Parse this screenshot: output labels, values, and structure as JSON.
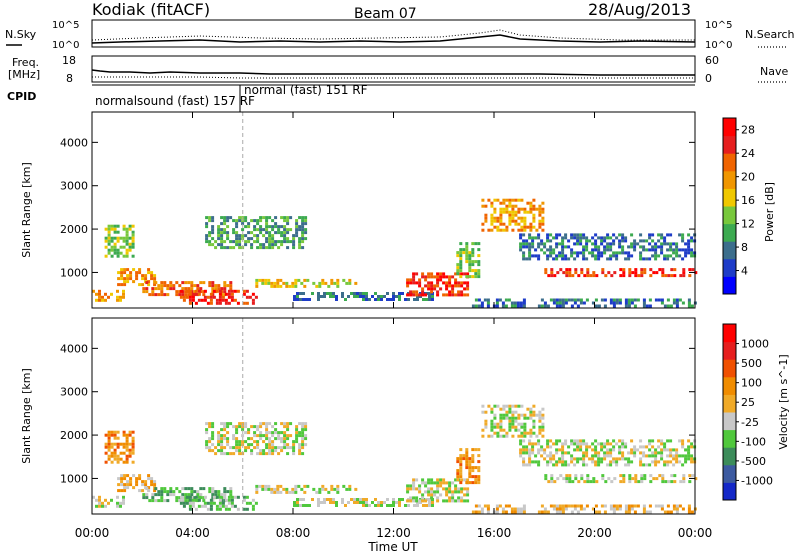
{
  "header": {
    "station": "Kodiak (fitACF)",
    "beam": "Beam 07",
    "date": "28/Aug/2013"
  },
  "aux_panels": {
    "nsky_label": "N.Sky",
    "nsearch_label": "N.Search",
    "freq_label_1": "Freq.",
    "freq_label_2": "[MHz]",
    "nave_label": "Nave",
    "cpid_label": "CPID",
    "noise_ticks": [
      "10^5",
      "10^0"
    ],
    "freq_ticks": [
      "18",
      "8"
    ],
    "nave_ticks": [
      "60",
      "0"
    ],
    "cpid_1": "normalsound (fast) 157 RF",
    "cpid_2": "normal (fast) 151 RF"
  },
  "chart_data": [
    {
      "type": "heatmap",
      "name": "power",
      "xlabel": "Time UT",
      "ylabel": "Slant Range [km]",
      "x_ticks": [
        "00:00",
        "04:00",
        "08:00",
        "12:00",
        "16:00",
        "20:00",
        "00:00"
      ],
      "xlim_hours": [
        0,
        24
      ],
      "y_ticks": [
        1000,
        2000,
        3000,
        4000
      ],
      "ylim": [
        180,
        4700
      ],
      "colorbar_label": "Power [dB]",
      "colorbar_ticks": [
        "4",
        "8",
        "12",
        "16",
        "20",
        "24",
        "28"
      ],
      "colorbar_range": [
        0,
        30
      ],
      "colors": [
        "#0000ff",
        "#1e3cc8",
        "#3c6e8c",
        "#3caa50",
        "#78c83c",
        "#f0c800",
        "#f09600",
        "#f06400",
        "#e61e1e",
        "#ff0000"
      ],
      "regions": [
        {
          "t": [
            0.0,
            1.2
          ],
          "r": [
            350,
            600
          ],
          "v": 20
        },
        {
          "t": [
            0.5,
            1.6
          ],
          "r": [
            1400,
            2100
          ],
          "v": 12
        },
        {
          "t": [
            1.0,
            2.5
          ],
          "r": [
            700,
            1100
          ],
          "v": 18
        },
        {
          "t": [
            2.0,
            5.5
          ],
          "r": [
            500,
            800
          ],
          "v": 22
        },
        {
          "t": [
            3.5,
            6.5
          ],
          "r": [
            300,
            600
          ],
          "v": 26
        },
        {
          "t": [
            4.5,
            8.5
          ],
          "r": [
            1600,
            2300
          ],
          "v": 10
        },
        {
          "t": [
            6.5,
            10.5
          ],
          "r": [
            650,
            850
          ],
          "v": 16
        },
        {
          "t": [
            8.0,
            13.5
          ],
          "r": [
            350,
            550
          ],
          "v": 8
        },
        {
          "t": [
            12.5,
            15.0
          ],
          "r": [
            500,
            1000
          ],
          "v": 24
        },
        {
          "t": [
            14.5,
            15.4
          ],
          "r": [
            900,
            1700
          ],
          "v": 14
        },
        {
          "t": [
            15.5,
            18.0
          ],
          "r": [
            2000,
            2700
          ],
          "v": 20
        },
        {
          "t": [
            17.0,
            24.0
          ],
          "r": [
            1300,
            1900
          ],
          "v": 8
        },
        {
          "t": [
            18.0,
            24.0
          ],
          "r": [
            900,
            1100
          ],
          "v": 26
        },
        {
          "t": [
            15.0,
            24.0
          ],
          "r": [
            200,
            400
          ],
          "v": 6
        }
      ]
    },
    {
      "type": "heatmap",
      "name": "velocity",
      "xlabel": "Time UT",
      "ylabel": "Slant Range [km]",
      "x_ticks": [
        "00:00",
        "04:00",
        "08:00",
        "12:00",
        "16:00",
        "20:00",
        "00:00"
      ],
      "xlim_hours": [
        0,
        24
      ],
      "y_ticks": [
        1000,
        2000,
        3000,
        4000
      ],
      "ylim": [
        180,
        4700
      ],
      "colorbar_label": "Velocity [m s^-1]",
      "colorbar_ticks": [
        "1000",
        "500",
        "100",
        "25",
        "-25",
        "-100",
        "-500",
        "-1000"
      ],
      "colors": [
        "#1428c8",
        "#3c5aa0",
        "#3c8c5a",
        "#50c83c",
        "#c8c8c8",
        "#f0aa28",
        "#f08c00",
        "#f05000",
        "#e61e1e",
        "#ff0000"
      ],
      "regions": [
        {
          "t": [
            0.0,
            1.2
          ],
          "r": [
            350,
            600
          ],
          "v": 4
        },
        {
          "t": [
            0.5,
            1.6
          ],
          "r": [
            1400,
            2100
          ],
          "v": 6
        },
        {
          "t": [
            1.0,
            2.5
          ],
          "r": [
            700,
            1100
          ],
          "v": 5
        },
        {
          "t": [
            2.0,
            5.5
          ],
          "r": [
            500,
            800
          ],
          "v": 3
        },
        {
          "t": [
            3.5,
            6.5
          ],
          "r": [
            300,
            600
          ],
          "v": 3
        },
        {
          "t": [
            4.5,
            8.5
          ],
          "r": [
            1600,
            2300
          ],
          "v": 4
        },
        {
          "t": [
            6.5,
            10.5
          ],
          "r": [
            650,
            850
          ],
          "v": 4
        },
        {
          "t": [
            8.0,
            13.5
          ],
          "r": [
            350,
            550
          ],
          "v": 4
        },
        {
          "t": [
            12.5,
            15.0
          ],
          "r": [
            500,
            1000
          ],
          "v": 4
        },
        {
          "t": [
            14.5,
            15.4
          ],
          "r": [
            900,
            1700
          ],
          "v": 6
        },
        {
          "t": [
            15.5,
            18.0
          ],
          "r": [
            2000,
            2700
          ],
          "v": 4
        },
        {
          "t": [
            17.0,
            24.0
          ],
          "r": [
            1300,
            1900
          ],
          "v": 4
        },
        {
          "t": [
            18.0,
            24.0
          ],
          "r": [
            900,
            1100
          ],
          "v": 4
        },
        {
          "t": [
            15.0,
            24.0
          ],
          "r": [
            200,
            400
          ],
          "v": 5
        }
      ]
    }
  ]
}
